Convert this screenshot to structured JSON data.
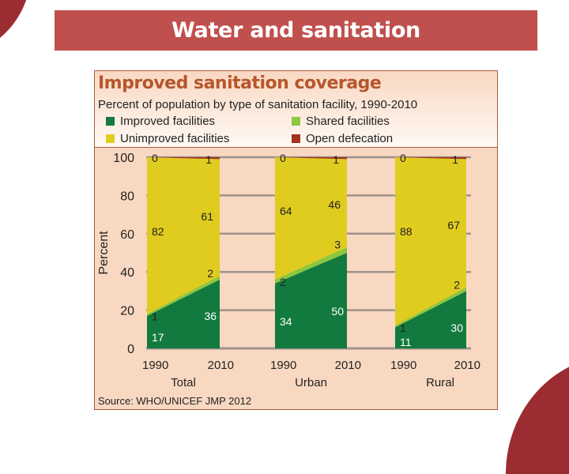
{
  "slide": {
    "title": "Water and sanitation",
    "accent_color": "#c0504d",
    "decor_color": "#9b2c31"
  },
  "chart_data": {
    "type": "area",
    "title": "Improved sanitation coverage",
    "subtitle": "Percent of population by type of sanitation facility, 1990-2010",
    "ylabel": "Percent",
    "xlabel": "",
    "ylim": [
      0,
      100
    ],
    "yticks": [
      0,
      20,
      40,
      60,
      80,
      100
    ],
    "grid": true,
    "stacked": true,
    "legend_placement": "top",
    "legend": [
      {
        "name": "Improved facilities",
        "color": "#127a3e"
      },
      {
        "name": "Shared facilities",
        "color": "#8dc63f"
      },
      {
        "name": "Unimproved facilities",
        "color": "#e0cc1f"
      },
      {
        "name": "Open defecation",
        "color": "#a3321e"
      }
    ],
    "groups": [
      {
        "name": "Total",
        "x": [
          "1990",
          "2010"
        ],
        "series": [
          {
            "name": "Improved facilities",
            "values": [
              17,
              36
            ]
          },
          {
            "name": "Shared facilities",
            "values": [
              1,
              2
            ]
          },
          {
            "name": "Unimproved facilities",
            "values": [
              82,
              61
            ]
          },
          {
            "name": "Open defecation",
            "values": [
              0,
              1
            ]
          }
        ]
      },
      {
        "name": "Urban",
        "x": [
          "1990",
          "2010"
        ],
        "series": [
          {
            "name": "Improved facilities",
            "values": [
              34,
              50
            ]
          },
          {
            "name": "Shared facilities",
            "values": [
              2,
              3
            ]
          },
          {
            "name": "Unimproved facilities",
            "values": [
              64,
              46
            ]
          },
          {
            "name": "Open defecation",
            "values": [
              0,
              1
            ]
          }
        ]
      },
      {
        "name": "Rural",
        "x": [
          "1990",
          "2010"
        ],
        "series": [
          {
            "name": "Improved facilities",
            "values": [
              11,
              30
            ]
          },
          {
            "name": "Shared facilities",
            "values": [
              1,
              2
            ]
          },
          {
            "name": "Unimproved facilities",
            "values": [
              88,
              67
            ]
          },
          {
            "name": "Open defecation",
            "values": [
              0,
              1
            ]
          }
        ]
      }
    ],
    "source": "Source:  WHO/UNICEF JMP 2012"
  }
}
